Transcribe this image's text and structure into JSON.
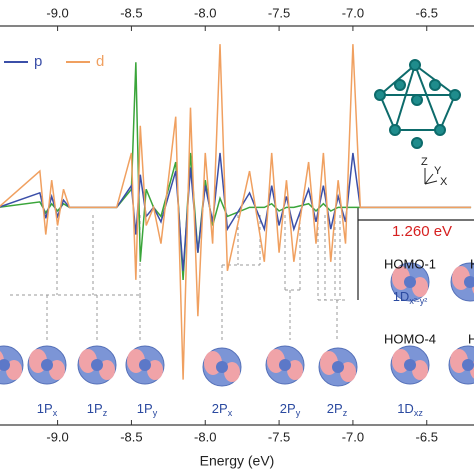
{
  "chart_data": {
    "type": "line",
    "x_label": "Energy (eV)",
    "xlim": [
      -9.39,
      -6.18
    ],
    "xticks": [
      {
        "value": -9,
        "label": "-9.0"
      },
      {
        "value": -8.5,
        "label": "-8.5"
      },
      {
        "value": -8,
        "label": "-8.0"
      },
      {
        "value": -7.5,
        "label": "-7.5"
      },
      {
        "value": -7,
        "label": "-7.0"
      },
      {
        "value": -6.5,
        "label": "-6.5"
      }
    ],
    "ylim": [
      -1.2,
      1.0
    ],
    "legend": "upper left",
    "x": [
      -9.4,
      -9.12,
      -9.08,
      -9.04,
      -9.0,
      -8.96,
      -8.92,
      -8.6,
      -8.5,
      -8.47,
      -8.44,
      -8.4,
      -8.35,
      -8.3,
      -8.2,
      -8.15,
      -8.1,
      -8.05,
      -8.0,
      -7.95,
      -7.9,
      -7.85,
      -7.7,
      -7.6,
      -7.55,
      -7.5,
      -7.45,
      -7.4,
      -7.3,
      -7.25,
      -7.2,
      -7.15,
      -7.1,
      -7.05,
      -7.0,
      -6.95,
      -6.2
    ],
    "series": [
      {
        "color": "#3aa53a",
        "values": [
          0,
          0.03,
          -0.03,
          0.02,
          -0.02,
          0.02,
          0,
          0,
          0.1,
          0.8,
          -0.3,
          0.1,
          0,
          -0.05,
          0.25,
          -0.4,
          0.3,
          -0.25,
          0.15,
          -0.1,
          0.05,
          -0.05,
          0,
          0,
          0.02,
          -0.02,
          0,
          0,
          0.02,
          -0.02,
          0.02,
          -0.02,
          0,
          0,
          0,
          0,
          0
        ]
      },
      {
        "name": "p",
        "color": "#3b4fa8",
        "values": [
          0,
          0.08,
          -0.06,
          0.06,
          -0.05,
          0.04,
          0,
          0,
          0.12,
          -0.15,
          0.18,
          -0.05,
          0,
          -0.08,
          0.2,
          -0.35,
          0.22,
          -0.25,
          0.12,
          -0.08,
          0.3,
          -0.12,
          0.08,
          -0.12,
          0.12,
          -0.1,
          0.06,
          -0.12,
          0.1,
          -0.08,
          0.12,
          -0.12,
          0.06,
          -0.08,
          0.3,
          0,
          0
        ]
      },
      {
        "name": "d",
        "color": "#f0a060",
        "values": [
          0,
          0.2,
          -0.15,
          0.15,
          -0.1,
          0.1,
          0,
          0,
          0.3,
          -0.4,
          0.45,
          -0.1,
          0,
          -0.2,
          0.5,
          -0.95,
          0.55,
          -0.6,
          0.3,
          -0.2,
          0.9,
          -0.35,
          0.2,
          -0.3,
          0.3,
          -0.25,
          0.15,
          -0.3,
          0.25,
          -0.2,
          0.3,
          -0.3,
          0.15,
          -0.2,
          0.9,
          0,
          0
        ]
      }
    ],
    "annotations": {
      "gap": "1.260 eV",
      "homo": [
        "HOMO-1",
        "HOMO-4",
        "H",
        "HO"
      ],
      "orbitals": [
        {
          "text": "1P",
          "sub": "x"
        },
        {
          "text": "1P",
          "sub": "z"
        },
        {
          "text": "1P",
          "sub": "y"
        },
        {
          "text": "2P",
          "sub": "x"
        },
        {
          "text": "2P",
          "sub": "y"
        },
        {
          "text": "2P",
          "sub": "z"
        },
        {
          "text": "1D",
          "sub": "x²-y²"
        },
        {
          "text": "1D",
          "sub": "xz"
        }
      ]
    },
    "inset_axes": [
      "Z",
      "Y",
      "X"
    ]
  }
}
